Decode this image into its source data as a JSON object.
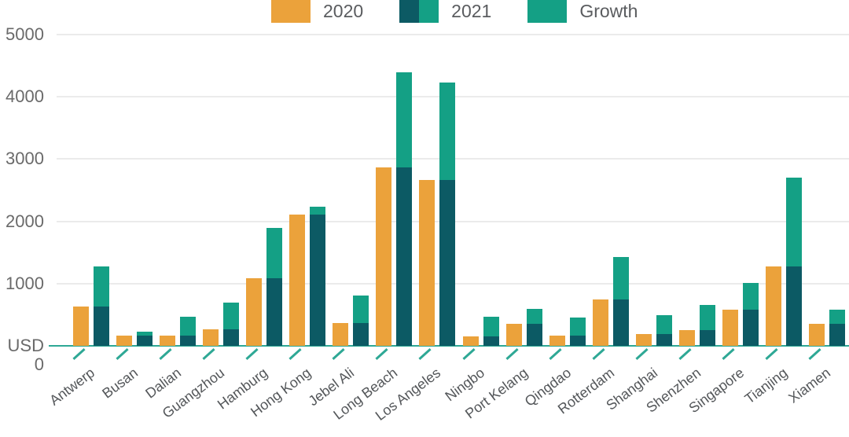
{
  "colors": {
    "bar_2020": "#EBA23B",
    "bar_2021": "#0C5A64",
    "bar_growth": "#14A085",
    "axis_line": "#2EA895",
    "gridline": "#EBEBEB",
    "axis_text": "#6A6A6A",
    "category_text": "#54575A",
    "legend_text": "#5A5C5F",
    "background": "#FFFFFF"
  },
  "chart_data": {
    "type": "bar",
    "grid": true,
    "legend_position": "top",
    "legend": [
      {
        "label": "2020",
        "swatch": "solid",
        "color": "#EBA23B"
      },
      {
        "label": "2021",
        "swatch": "split",
        "colors": [
          "#0C5A64",
          "#14A085"
        ]
      },
      {
        "label": "Growth",
        "swatch": "solid",
        "color": "#14A085"
      }
    ],
    "categories": [
      "Antwerp",
      "Busan",
      "Dalian",
      "Guangzhou",
      "Hamburg",
      "Hong Kong",
      "Jebel Ali",
      "Long Beach",
      "Los Angeles",
      "Ningbo",
      "Port Kelang",
      "Qingdao",
      "Rotterdam",
      "Shanghai",
      "Shenzhen",
      "Singapore",
      "Tianjing",
      "Xiamen"
    ],
    "series": [
      {
        "name": "2020",
        "role": "solo-bar",
        "color": "#EBA23B",
        "values": [
          630,
          160,
          160,
          270,
          1080,
          2110,
          370,
          2870,
          2660,
          150,
          350,
          160,
          750,
          190,
          255,
          580,
          1270,
          350
        ]
      },
      {
        "name": "2021",
        "role": "stacked-bar-total",
        "color": "#0C5A64",
        "values": [
          1270,
          230,
          470,
          700,
          1890,
          2230,
          810,
          4390,
          4230,
          470,
          590,
          450,
          1430,
          490,
          660,
          1010,
          2700,
          580
        ]
      },
      {
        "name": "Growth",
        "role": "stacked-top-segment",
        "color": "#14A085",
        "values": [
          640,
          70,
          310,
          430,
          810,
          120,
          440,
          1520,
          1570,
          320,
          240,
          290,
          680,
          300,
          405,
          430,
          1430,
          230
        ]
      }
    ],
    "y_axis": {
      "unit_prefix": "USD",
      "min": 0,
      "max": 5000,
      "ticks": [
        {
          "label": "5000",
          "value": 5000
        },
        {
          "label": "4000",
          "value": 4000
        },
        {
          "label": "3000",
          "value": 3000
        },
        {
          "label": "2000",
          "value": 2000
        },
        {
          "label": "1000",
          "value": 1000
        },
        {
          "label": "USD 0",
          "value": 0
        }
      ]
    }
  }
}
